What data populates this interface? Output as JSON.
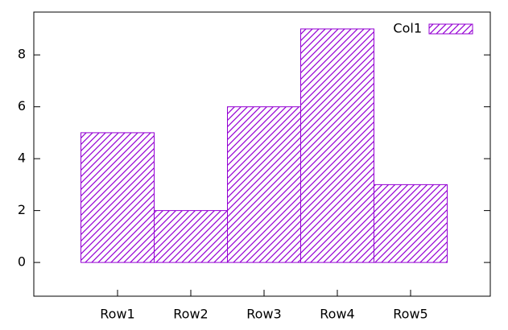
{
  "chart_data": {
    "type": "bar",
    "categories": [
      "Row1",
      "Row2",
      "Row3",
      "Row4",
      "Row5"
    ],
    "series": [
      {
        "name": "Col1",
        "color": "#9400d3",
        "values": [
          5,
          2,
          6,
          9,
          3
        ]
      }
    ],
    "ylim": [
      -1.3,
      9.65
    ],
    "yticks": [
      0,
      2,
      4,
      6,
      8
    ],
    "legend": "top-right"
  }
}
